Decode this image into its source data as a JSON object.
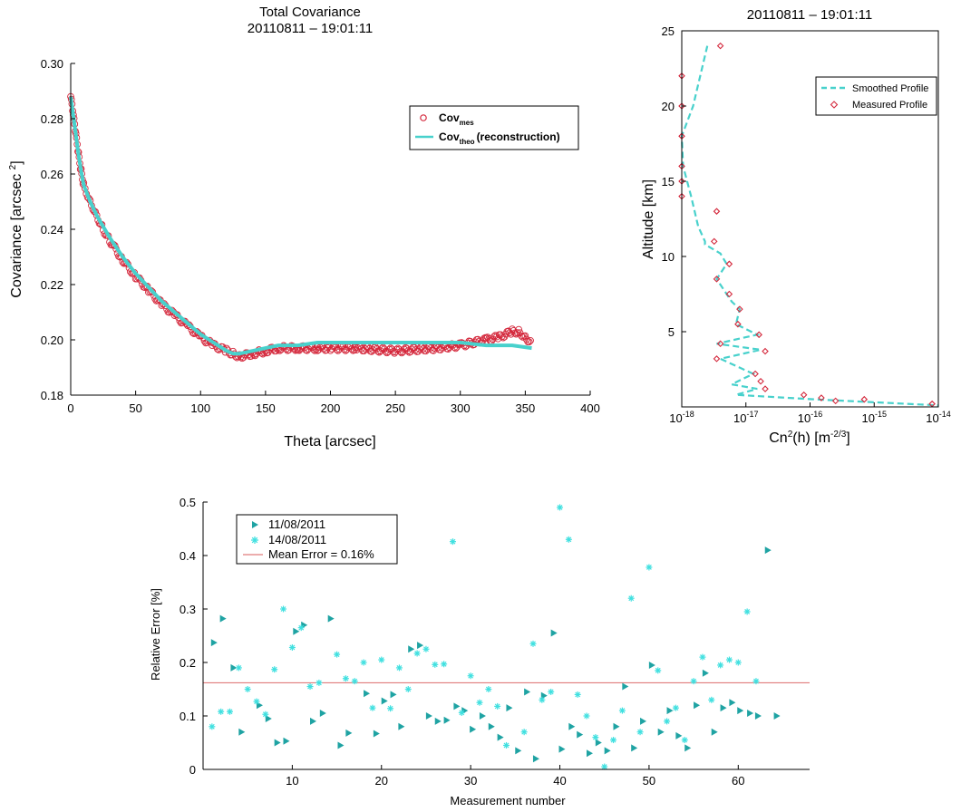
{
  "chart_data": [
    {
      "type": "scatter",
      "title": "Total Covariance",
      "subtitle": "20110811 – 19:01:11",
      "xlabel": "Theta [arcsec]",
      "ylabel": "Covariance [arcsec ",
      "ylabel_sup": "2",
      "ylabel_close": "]",
      "xlim": [
        0,
        400
      ],
      "ylim": [
        0.18,
        0.3
      ],
      "xticks": [
        "0",
        "50",
        "100",
        "150",
        "200",
        "250",
        "300",
        "350",
        "400"
      ],
      "yticks": [
        "0.18",
        "0.20",
        "0.22",
        "0.24",
        "0.26",
        "0.28",
        "0.30"
      ],
      "legend": {
        "position": "top-right"
      },
      "series": [
        {
          "name": "Cov",
          "name_sub": "mes",
          "style": "open-circle",
          "color": "#d4283c",
          "x": [
            0,
            2,
            4,
            6,
            8,
            10,
            15,
            20,
            25,
            30,
            40,
            50,
            60,
            70,
            80,
            90,
            100,
            110,
            120,
            125,
            130,
            140,
            150,
            160,
            175,
            190,
            200,
            220,
            250,
            280,
            300,
            320,
            330,
            340,
            345,
            350,
            355
          ],
          "y": [
            0.288,
            0.281,
            0.274,
            0.267,
            0.261,
            0.256,
            0.25,
            0.245,
            0.24,
            0.236,
            0.229,
            0.223,
            0.218,
            0.213,
            0.209,
            0.205,
            0.201,
            0.198,
            0.196,
            0.195,
            0.194,
            0.195,
            0.196,
            0.197,
            0.197,
            0.197,
            0.197,
            0.197,
            0.196,
            0.197,
            0.198,
            0.2,
            0.201,
            0.203,
            0.203,
            0.201,
            0.199
          ]
        },
        {
          "name": "Cov",
          "name_sub": "theo",
          "name_suffix": "(reconstruction)",
          "style": "line",
          "color": "#48d1cc",
          "x": [
            0,
            2,
            4,
            6,
            8,
            10,
            15,
            20,
            25,
            30,
            40,
            50,
            60,
            70,
            80,
            90,
            100,
            110,
            120,
            125,
            130,
            140,
            150,
            160,
            175,
            190,
            200,
            220,
            250,
            280,
            300,
            320,
            340,
            355
          ],
          "y": [
            0.288,
            0.281,
            0.274,
            0.267,
            0.261,
            0.256,
            0.25,
            0.245,
            0.241,
            0.237,
            0.23,
            0.224,
            0.219,
            0.214,
            0.21,
            0.206,
            0.202,
            0.199,
            0.196,
            0.195,
            0.195,
            0.196,
            0.197,
            0.198,
            0.198,
            0.199,
            0.199,
            0.199,
            0.199,
            0.199,
            0.199,
            0.198,
            0.198,
            0.197
          ]
        }
      ]
    },
    {
      "type": "line",
      "title": "20110811 – 19:01:11",
      "xlabel": "Cn",
      "xlabel_sup": "2",
      "xlabel_mid": "(h) [m",
      "xlabel_sup2": "-2/3",
      "xlabel_close": "]",
      "ylabel": "Altitude [km]",
      "xscale": "log",
      "xlim": [
        1e-18,
        1e-14
      ],
      "ylim": [
        0,
        25
      ],
      "xticks": [
        {
          "base": "10",
          "exp": "-18"
        },
        {
          "base": "10",
          "exp": "-17"
        },
        {
          "base": "10",
          "exp": "-16"
        },
        {
          "base": "10",
          "exp": "-15"
        },
        {
          "base": "10",
          "exp": "-14"
        }
      ],
      "yticks": [
        "5",
        "10",
        "15",
        "20",
        "25"
      ],
      "legend": {
        "position": "top-right"
      },
      "series": [
        {
          "name": "Smoothed Profile",
          "style": "dashed-line",
          "color": "#48d1cc",
          "x": [
            2.5e-18,
            1.5e-18,
            1e-18,
            1.05e-18,
            1.4e-18,
            1.8e-18,
            2.3e-18,
            2.3e-18,
            4e-18,
            5e-18,
            3.5e-18,
            5e-18,
            6e-18,
            8e-18,
            7e-18,
            1.5e-17,
            3.5e-18,
            1.7e-17,
            4e-18,
            1.3e-17,
            6e-18,
            1.5e-17,
            7e-18,
            1.2e-16,
            1e-14
          ],
          "y": [
            24,
            20,
            18,
            16,
            14,
            12,
            11,
            10.8,
            10.2,
            9.5,
            8.5,
            7.5,
            7,
            6.5,
            5.5,
            4.8,
            4.2,
            3.8,
            3.2,
            2.2,
            1.5,
            1.2,
            0.8,
            0.5,
            0.1
          ]
        },
        {
          "name": "Measured Profile",
          "style": "open-diamond",
          "color": "#d4283c",
          "x": [
            4e-18,
            1e-18,
            1e-18,
            1e-18,
            1e-18,
            1e-18,
            1e-18,
            3.5e-18,
            3.2e-18,
            5.5e-18,
            3.5e-18,
            5.5e-18,
            8e-18,
            7.5e-18,
            1.6e-17,
            4e-18,
            2e-17,
            3.5e-18,
            1.4e-17,
            1.7e-17,
            2e-17,
            8e-17,
            1.5e-16,
            2.5e-16,
            7e-16,
            8e-15
          ],
          "y": [
            24,
            22,
            20,
            18,
            16,
            15,
            14,
            13,
            11,
            9.5,
            8.5,
            7.5,
            6.5,
            5.5,
            4.8,
            4.2,
            3.7,
            3.2,
            2.2,
            1.7,
            1.2,
            0.8,
            0.6,
            0.4,
            0.5,
            0.2
          ]
        }
      ]
    },
    {
      "type": "scatter",
      "title": "",
      "xlabel": "Measurement number",
      "ylabel": "Relative Error [%]",
      "xlim": [
        0,
        68
      ],
      "ylim": [
        0,
        0.5
      ],
      "xticks": [
        "10",
        "20",
        "30",
        "40",
        "50",
        "60"
      ],
      "yticks": [
        "0",
        "0.1",
        "0.2",
        "0.3",
        "0.4",
        "0.5"
      ],
      "legend": {
        "position": "top-left"
      },
      "mean_line": {
        "label": "Mean Error = 0.16%",
        "value": 0.162,
        "color": "#e07c7c"
      },
      "series": [
        {
          "name": "11/08/2011",
          "style": "triangle-right",
          "color": "#1fa3a3",
          "x": [
            1.2,
            2.2,
            3.4,
            4.3,
            6.3,
            7.3,
            8.3,
            9.3,
            10.4,
            11.3,
            12.3,
            13.4,
            14.3,
            15.4,
            16.3,
            18.3,
            19.4,
            20.3,
            21.3,
            22.2,
            23.3,
            24.3,
            25.3,
            26.3,
            27.3,
            28.4,
            29.3,
            30.2,
            31.3,
            32.3,
            33.3,
            34.3,
            35.3,
            36.3,
            37.3,
            38.2,
            39.3,
            40.2,
            41.3,
            42.2,
            43.3,
            44.3,
            45.3,
            46.3,
            47.3,
            48.3,
            49.3,
            50.3,
            51.3,
            52.3,
            53.3,
            54.3,
            55.3,
            56.3,
            57.3,
            58.3,
            59.3,
            60.2,
            61.3,
            62.2,
            63.3,
            64.3
          ],
          "y": [
            0.237,
            0.282,
            0.19,
            0.07,
            0.12,
            0.095,
            0.05,
            0.053,
            0.258,
            0.27,
            0.09,
            0.105,
            0.282,
            0.045,
            0.068,
            0.142,
            0.067,
            0.128,
            0.14,
            0.08,
            0.225,
            0.232,
            0.1,
            0.09,
            0.092,
            0.118,
            0.11,
            0.075,
            0.1,
            0.08,
            0.06,
            0.115,
            0.035,
            0.145,
            0.02,
            0.138,
            0.255,
            0.038,
            0.08,
            0.065,
            0.03,
            0.05,
            0.035,
            0.08,
            0.155,
            0.04,
            0.09,
            0.195,
            0.07,
            0.11,
            0.063,
            0.04,
            0.12,
            0.18,
            0.07,
            0.115,
            0.125,
            0.11,
            0.105,
            0.1,
            0.41,
            0.1
          ]
        },
        {
          "name": "14/08/2011",
          "style": "asterisk",
          "color": "#40e0e0",
          "x": [
            1.0,
            2.0,
            3.0,
            4.0,
            5.0,
            6.0,
            7.0,
            8.0,
            9.0,
            10.0,
            11.0,
            12.0,
            13.0,
            15.0,
            16.0,
            17.0,
            18.0,
            19.0,
            20.0,
            21.0,
            22.0,
            23.0,
            24.0,
            25.0,
            26.0,
            27.0,
            28.0,
            29.0,
            30.0,
            31.0,
            32.0,
            33.0,
            34.0,
            36.0,
            37.0,
            38.0,
            39.0,
            40.0,
            41.0,
            42.0,
            43.0,
            44.0,
            45.0,
            46.0,
            47.0,
            48.0,
            49.0,
            50.0,
            51.0,
            52.0,
            53.0,
            54.0,
            55.0,
            56.0,
            57.0,
            58.0,
            59.0,
            60.0,
            61.0,
            62.0
          ],
          "y": [
            0.08,
            0.108,
            0.108,
            0.19,
            0.15,
            0.127,
            0.103,
            0.187,
            0.3,
            0.228,
            0.265,
            0.155,
            0.162,
            0.215,
            0.17,
            0.165,
            0.2,
            0.115,
            0.205,
            0.114,
            0.19,
            0.15,
            0.217,
            0.225,
            0.196,
            0.197,
            0.426,
            0.106,
            0.175,
            0.125,
            0.15,
            0.118,
            0.045,
            0.07,
            0.235,
            0.13,
            0.145,
            0.49,
            0.43,
            0.14,
            0.1,
            0.06,
            0.005,
            0.055,
            0.11,
            0.32,
            0.07,
            0.378,
            0.185,
            0.09,
            0.115,
            0.055,
            0.165,
            0.21,
            0.13,
            0.195,
            0.205,
            0.2,
            0.295,
            0.165
          ]
        }
      ]
    }
  ]
}
